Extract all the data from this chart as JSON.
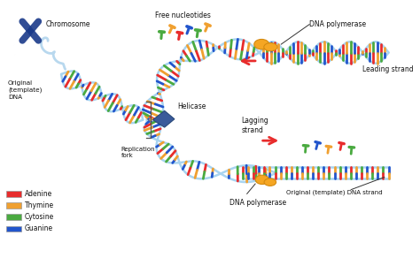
{
  "background_color": "#f5f5f0",
  "labels": {
    "chromosome": "Chromosome",
    "original_dna": "Original\n(template)\nDNA",
    "replication_fork": "Replication\nfork",
    "free_nucleotides": "Free nucleotides",
    "dna_polymerase_top": "DNA polymerase",
    "leading_strand": "Leading strand",
    "helicase": "Helicase",
    "lagging_strand": "Lagging\nstrand",
    "dna_polymerase_bottom": "DNA polymerase",
    "original_dna_strand": "Original (template) DNA strand"
  },
  "legend": [
    {
      "label": "Adenine",
      "color": "#e82c2c"
    },
    {
      "label": "Thymine",
      "color": "#f0a030"
    },
    {
      "label": "Cytosine",
      "color": "#4aaa40"
    },
    {
      "label": "Guanine",
      "color": "#2255cc"
    }
  ],
  "colors": {
    "adenine": "#e82c2c",
    "thymine": "#f0a030",
    "cytosine": "#4aaa40",
    "guanine": "#2255cc",
    "backbone": "#a8d4f0",
    "backbone_dark": "#7ab8e0",
    "chromosome": "#1a3a8a",
    "helicase": "#3a5fa0",
    "polymerase": "#f5a623",
    "polymerase_dark": "#d48a10",
    "arrow_red": "#e82c2c",
    "text": "#111111",
    "gray_line": "#888888"
  },
  "figsize": [
    4.74,
    2.92
  ],
  "dpi": 100
}
